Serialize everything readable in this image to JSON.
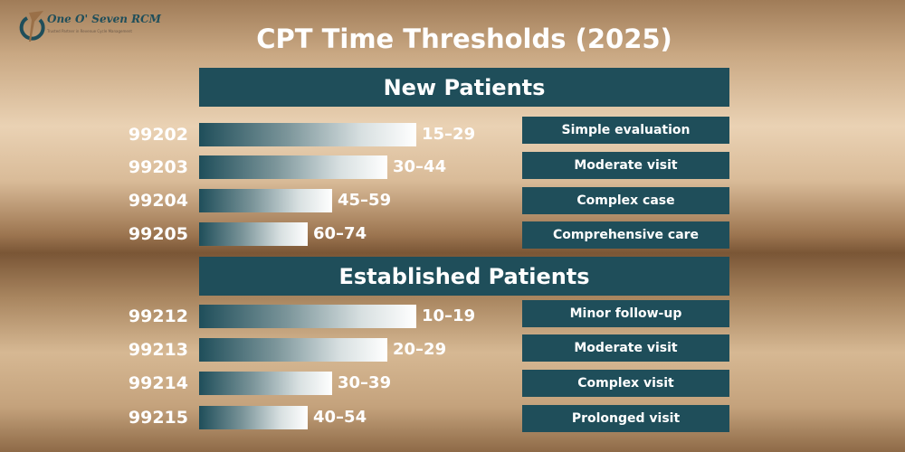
{
  "logo": {
    "name": "One O' Seven RCM",
    "tagline": "Trusted Partner in Revenue Cycle Management"
  },
  "title": "CPT Time Thresholds (2025)",
  "sections": [
    {
      "heading": "New Patients",
      "rows": [
        {
          "code": "99202",
          "range": "15–29",
          "desc": "Simple evaluation"
        },
        {
          "code": "99203",
          "range": "30–44",
          "desc": "Moderate visit"
        },
        {
          "code": "99204",
          "range": "45–59",
          "desc": "Complex case"
        },
        {
          "code": "99205",
          "range": "60–74",
          "desc": "Comprehensive care"
        }
      ]
    },
    {
      "heading": "Established Patients",
      "rows": [
        {
          "code": "99212",
          "range": "10–19",
          "desc": "Minor follow-up"
        },
        {
          "code": "99213",
          "range": "20–29",
          "desc": "Moderate visit"
        },
        {
          "code": "99214",
          "range": "30–39",
          "desc": "Complex visit"
        },
        {
          "code": "99215",
          "range": "40–54",
          "desc": "Prolonged visit"
        }
      ]
    }
  ]
}
